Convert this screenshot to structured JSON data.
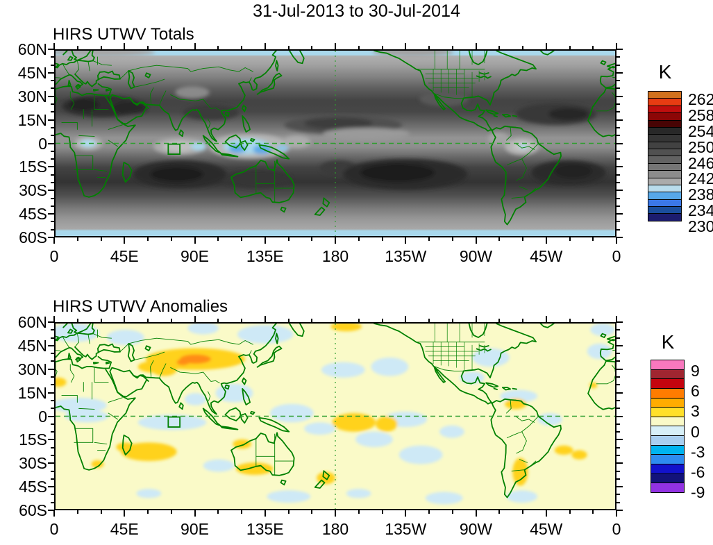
{
  "main_title": "31-Jul-2013 to 30-Jul-2014",
  "axis": {
    "x_tick_labels": [
      "0",
      "45E",
      "90E",
      "135E",
      "180",
      "135W",
      "90W",
      "45W",
      "0"
    ],
    "y_tick_labels": [
      "60N",
      "45N",
      "30N",
      "15N",
      "0",
      "15S",
      "30S",
      "45S",
      "60S"
    ]
  },
  "maps": [
    {
      "title": "HIRS UTWV Totals",
      "colorbar_title": "K",
      "colorbar_tick_labels": [
        "262",
        "258",
        "254",
        "250",
        "246",
        "242",
        "238",
        "234",
        "230"
      ],
      "colorbar_colors": [
        "#D2711E",
        "#E83C12",
        "#C00E0E",
        "#8C0606",
        "#480404",
        "#282828",
        "#353535",
        "#424242",
        "#515151",
        "#626262",
        "#757575",
        "#8C8C8C",
        "#ABABAB",
        "#B9DCEC",
        "#57A8E8",
        "#3B78E8",
        "#1A4E9C",
        "#1C1C6E"
      ]
    },
    {
      "title": "HIRS UTWV Anomalies",
      "colorbar_title": "K",
      "colorbar_tick_labels": [
        "9",
        "6",
        "3",
        "0",
        "-3",
        "-6",
        "-9"
      ],
      "colorbar_colors": [
        "#F878BE",
        "#A02530",
        "#C4040E",
        "#FF7C00",
        "#FFAC00",
        "#FFE02A",
        "#FAFAC8",
        "#D8F0F8",
        "#A9CFF0",
        "#00B4F0",
        "#2E8CF0",
        "#1212CC",
        "#12127A",
        "#9232E2"
      ]
    }
  ],
  "map_accent_colors": {
    "coastline_green": "#008000",
    "reference_line_green": "#2E9E2E",
    "totals_edge_blue": "#A9D8EC",
    "anomaly_background_cream": "#FAFAC8",
    "anomaly_positive_yellow": "#FFD21E",
    "anomaly_strong_orange": "#FF8C14",
    "anomaly_negative_blue": "#CEE9F6"
  },
  "chart_data": [
    {
      "type": "heatmap",
      "title": "HIRS UTWV Totals",
      "subtitle_period": "31-Jul-2013 to 30-Jul-2014",
      "variable": "HIRS upper-tropospheric water vapor brightness temperature (totals)",
      "units": "K",
      "projection": "equirectangular world map, longitude 0 eastward through 180 back to 0, latitude 60S-60N",
      "x_ticks": [
        "0",
        "45E",
        "90E",
        "135E",
        "180",
        "135W",
        "90W",
        "45W",
        "0"
      ],
      "y_ticks": [
        "60N",
        "45N",
        "30N",
        "15N",
        "0",
        "15S",
        "30S",
        "45S",
        "60S"
      ],
      "grid": "dashed green reference lines at the equator and the 180 meridian; small green study box near 73-80E, 0-7S",
      "legend_position": "vertical colorbar right of map",
      "colorbar": {
        "title": "K",
        "cell_width_K": 2,
        "labeled_levels": [
          262,
          258,
          254,
          250,
          246,
          242,
          238,
          234,
          230
        ],
        "implied_range": [
          228,
          264
        ],
        "colors_top_to_bottom": [
          "#D2711E",
          "#E83C12",
          "#C00E0E",
          "#8C0606",
          "#480404",
          "#282828",
          "#353535",
          "#424242",
          "#515151",
          "#626262",
          "#757575",
          "#8C8C8C",
          "#ABABAB",
          "#B9DCEC",
          "#57A8E8",
          "#3B78E8",
          "#1A4E9C",
          "#1C1C6E"
        ]
      },
      "notable_features": [
        "Dark gray dry bands (~248-256 K) across the northern subtropics: N Africa-Arabia-S Asia, central N Pacific, and subtropical N Atlantic",
        "Darkest values (~252-256 K) in the southern subtropics over the S Indian, S Pacific and S Atlantic oceans and across Australia",
        "Light gray to blue moist regions (~232-240 K) over the Maritime Continent / West Pacific warm pool, equatorial Indian Ocean, Congo and Amazon basins",
        "Light blue strip (~236-238 K) along the 60N and 60S map edges",
        "Green coastlines, country borders and US state borders overlaid"
      ]
    },
    {
      "type": "heatmap",
      "title": "HIRS UTWV Anomalies",
      "subtitle_period": "31-Jul-2013 to 30-Jul-2014",
      "variable": "HIRS upper-tropospheric water vapor brightness temperature anomalies",
      "units": "K",
      "projection": "equirectangular world map, longitude 0 eastward through 180 back to 0, latitude 60S-60N",
      "x_ticks": [
        "0",
        "45E",
        "90E",
        "135E",
        "180",
        "135W",
        "90W",
        "45W",
        "0"
      ],
      "y_ticks": [
        "60N",
        "45N",
        "30N",
        "15N",
        "0",
        "15S",
        "30S",
        "45S",
        "60S"
      ],
      "grid": "dashed green reference lines at the equator and the 180 meridian; small green study box near 73-80E, 0-7S",
      "legend_position": "vertical colorbar right of map",
      "colorbar": {
        "title": "K",
        "cell_width_K": 1.5,
        "labeled_levels": [
          9,
          6,
          3,
          0,
          -3,
          -6,
          -9
        ],
        "implied_range": [
          -10.5,
          10.5
        ],
        "colors_top_to_bottom": [
          "#F878BE",
          "#A02530",
          "#C4040E",
          "#FF7C00",
          "#FFAC00",
          "#FFE02A",
          "#FAFAC8",
          "#D8F0F8",
          "#A9CFF0",
          "#00B4F0",
          "#2E8CF0",
          "#1212CC",
          "#12127A",
          "#9232E2"
        ]
      },
      "notable_features": [
        "Background mostly weak positive anomaly (0 to +1.5 K, pale cream)",
        "Strongest positive anomaly (+3 to +6 K, yellow with small orange core) across central Asia ~60-125E, 28-45N",
        "Other yellow (+1.5 to +3 K) patches: S Indian Ocean near Madagascar, NW and S Australia, central equatorial Pacific, Venezuela, Argentina, S Atlantic, near New Zealand",
        "Weak negative anomalies (0 to -3 K, light blue) over central Africa, equatorial Indian Ocean, SE Asia, W and E Pacific patches, eastern N America, Caribbean and high latitudes"
      ]
    }
  ]
}
